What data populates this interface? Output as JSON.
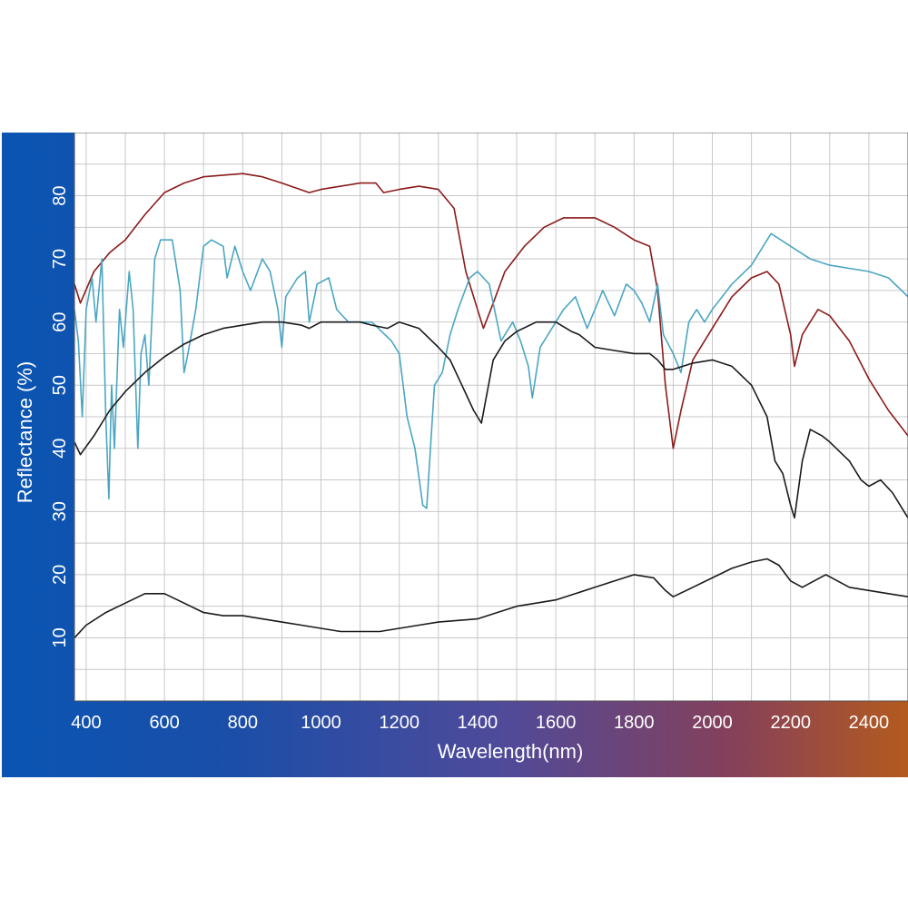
{
  "chart_data": {
    "type": "line",
    "title": "",
    "xlabel": "Wavelength(nm)",
    "ylabel": "Reflectance (%)",
    "xlim": [
      370,
      2500
    ],
    "ylim": [
      0,
      90
    ],
    "x_ticks": [
      400,
      600,
      800,
      1000,
      1200,
      1400,
      1600,
      1800,
      2000,
      2200,
      2400
    ],
    "y_ticks": [
      10,
      20,
      30,
      40,
      50,
      60,
      70,
      80
    ],
    "grid": true,
    "legend": "none",
    "colors": {
      "background_left": "#0a55b3",
      "background_right": "#b45a1e",
      "plot_area": "#ffffff",
      "grid": "#c8c8c8"
    },
    "series": [
      {
        "color": "#8b1a1a",
        "points": [
          [
            370,
            66
          ],
          [
            385,
            63
          ],
          [
            420,
            68
          ],
          [
            460,
            71
          ],
          [
            500,
            73
          ],
          [
            550,
            77
          ],
          [
            600,
            80.5
          ],
          [
            650,
            82
          ],
          [
            700,
            83
          ],
          [
            800,
            83.5
          ],
          [
            850,
            83
          ],
          [
            900,
            82
          ],
          [
            970,
            80.5
          ],
          [
            1000,
            81
          ],
          [
            1050,
            81.5
          ],
          [
            1100,
            82
          ],
          [
            1140,
            82
          ],
          [
            1160,
            80.5
          ],
          [
            1200,
            81
          ],
          [
            1250,
            81.5
          ],
          [
            1300,
            81
          ],
          [
            1340,
            78
          ],
          [
            1370,
            68
          ],
          [
            1400,
            62
          ],
          [
            1415,
            59
          ],
          [
            1440,
            63
          ],
          [
            1470,
            68
          ],
          [
            1520,
            72
          ],
          [
            1570,
            75
          ],
          [
            1620,
            76.5
          ],
          [
            1700,
            76.5
          ],
          [
            1750,
            75
          ],
          [
            1800,
            73
          ],
          [
            1840,
            72
          ],
          [
            1860,
            65
          ],
          [
            1880,
            50
          ],
          [
            1900,
            40
          ],
          [
            1920,
            46
          ],
          [
            1950,
            54
          ],
          [
            2000,
            59
          ],
          [
            2050,
            64
          ],
          [
            2100,
            67
          ],
          [
            2140,
            68
          ],
          [
            2170,
            66
          ],
          [
            2200,
            58
          ],
          [
            2210,
            53
          ],
          [
            2230,
            58
          ],
          [
            2270,
            62
          ],
          [
            2300,
            61
          ],
          [
            2350,
            57
          ],
          [
            2400,
            51
          ],
          [
            2450,
            46
          ],
          [
            2500,
            42
          ]
        ]
      },
      {
        "color": "#4aa6c2",
        "points": [
          [
            370,
            62
          ],
          [
            380,
            57
          ],
          [
            390,
            45
          ],
          [
            400,
            62
          ],
          [
            415,
            67
          ],
          [
            425,
            60
          ],
          [
            440,
            70
          ],
          [
            450,
            45
          ],
          [
            458,
            32
          ],
          [
            465,
            50
          ],
          [
            472,
            40
          ],
          [
            485,
            62
          ],
          [
            495,
            56
          ],
          [
            510,
            68
          ],
          [
            520,
            62
          ],
          [
            532,
            40
          ],
          [
            540,
            55
          ],
          [
            550,
            58
          ],
          [
            560,
            50
          ],
          [
            575,
            70
          ],
          [
            590,
            73
          ],
          [
            620,
            73
          ],
          [
            640,
            65
          ],
          [
            650,
            52
          ],
          [
            660,
            55
          ],
          [
            680,
            62
          ],
          [
            700,
            72
          ],
          [
            720,
            73
          ],
          [
            750,
            72
          ],
          [
            760,
            67
          ],
          [
            780,
            72
          ],
          [
            800,
            68
          ],
          [
            820,
            65
          ],
          [
            850,
            70
          ],
          [
            870,
            68
          ],
          [
            890,
            62
          ],
          [
            900,
            56
          ],
          [
            910,
            64
          ],
          [
            940,
            67
          ],
          [
            960,
            68
          ],
          [
            970,
            60
          ],
          [
            990,
            66
          ],
          [
            1020,
            67
          ],
          [
            1040,
            62
          ],
          [
            1070,
            60
          ],
          [
            1100,
            60
          ],
          [
            1130,
            60
          ],
          [
            1180,
            57
          ],
          [
            1200,
            55
          ],
          [
            1220,
            45
          ],
          [
            1240,
            40
          ],
          [
            1260,
            31
          ],
          [
            1270,
            30.5
          ],
          [
            1290,
            50
          ],
          [
            1310,
            52
          ],
          [
            1330,
            58
          ],
          [
            1350,
            62
          ],
          [
            1380,
            67
          ],
          [
            1400,
            68
          ],
          [
            1430,
            66
          ],
          [
            1460,
            57
          ],
          [
            1490,
            60
          ],
          [
            1510,
            57
          ],
          [
            1530,
            53
          ],
          [
            1540,
            48
          ],
          [
            1560,
            56
          ],
          [
            1600,
            60
          ],
          [
            1620,
            62
          ],
          [
            1650,
            64
          ],
          [
            1680,
            59
          ],
          [
            1700,
            62
          ],
          [
            1720,
            65
          ],
          [
            1750,
            61
          ],
          [
            1780,
            66
          ],
          [
            1800,
            65
          ],
          [
            1820,
            63
          ],
          [
            1840,
            60
          ],
          [
            1860,
            66
          ],
          [
            1875,
            58
          ],
          [
            1900,
            55
          ],
          [
            1920,
            52
          ],
          [
            1940,
            60
          ],
          [
            1960,
            62
          ],
          [
            1980,
            60
          ],
          [
            2000,
            62
          ],
          [
            2050,
            66
          ],
          [
            2100,
            69
          ],
          [
            2130,
            72
          ],
          [
            2150,
            74
          ],
          [
            2200,
            72
          ],
          [
            2250,
            70
          ],
          [
            2300,
            69
          ],
          [
            2400,
            68
          ],
          [
            2450,
            67
          ],
          [
            2500,
            64
          ]
        ]
      },
      {
        "color": "#1a1a1a",
        "points": [
          [
            370,
            41
          ],
          [
            385,
            39
          ],
          [
            420,
            42
          ],
          [
            460,
            46
          ],
          [
            500,
            49
          ],
          [
            550,
            52
          ],
          [
            600,
            54.5
          ],
          [
            650,
            56.5
          ],
          [
            700,
            58
          ],
          [
            750,
            59
          ],
          [
            800,
            59.5
          ],
          [
            850,
            60
          ],
          [
            900,
            60
          ],
          [
            950,
            59.5
          ],
          [
            970,
            59
          ],
          [
            1000,
            60
          ],
          [
            1050,
            60
          ],
          [
            1100,
            60
          ],
          [
            1130,
            59.5
          ],
          [
            1170,
            59
          ],
          [
            1200,
            60
          ],
          [
            1250,
            59
          ],
          [
            1300,
            56
          ],
          [
            1330,
            54
          ],
          [
            1360,
            50
          ],
          [
            1390,
            46
          ],
          [
            1410,
            44
          ],
          [
            1440,
            54
          ],
          [
            1470,
            57
          ],
          [
            1500,
            58.5
          ],
          [
            1550,
            60
          ],
          [
            1600,
            60
          ],
          [
            1640,
            58.5
          ],
          [
            1660,
            58
          ],
          [
            1700,
            56
          ],
          [
            1750,
            55.5
          ],
          [
            1800,
            55
          ],
          [
            1840,
            55
          ],
          [
            1860,
            54
          ],
          [
            1880,
            52.5
          ],
          [
            1900,
            52.5
          ],
          [
            1950,
            53.5
          ],
          [
            2000,
            54
          ],
          [
            2050,
            53
          ],
          [
            2100,
            50
          ],
          [
            2140,
            45
          ],
          [
            2160,
            38
          ],
          [
            2180,
            36
          ],
          [
            2200,
            31
          ],
          [
            2210,
            29
          ],
          [
            2230,
            38
          ],
          [
            2250,
            43
          ],
          [
            2280,
            42
          ],
          [
            2300,
            41
          ],
          [
            2350,
            38
          ],
          [
            2380,
            35
          ],
          [
            2400,
            34
          ],
          [
            2430,
            35
          ],
          [
            2460,
            33
          ],
          [
            2480,
            31
          ],
          [
            2500,
            29
          ]
        ]
      },
      {
        "color": "#1a1a1a",
        "points": [
          [
            370,
            10
          ],
          [
            400,
            12
          ],
          [
            450,
            14
          ],
          [
            500,
            15.5
          ],
          [
            550,
            17
          ],
          [
            600,
            17
          ],
          [
            650,
            15.5
          ],
          [
            700,
            14
          ],
          [
            750,
            13.5
          ],
          [
            800,
            13.5
          ],
          [
            850,
            13
          ],
          [
            900,
            12.5
          ],
          [
            950,
            12
          ],
          [
            1000,
            11.5
          ],
          [
            1050,
            11
          ],
          [
            1100,
            11
          ],
          [
            1150,
            11
          ],
          [
            1200,
            11.5
          ],
          [
            1250,
            12
          ],
          [
            1300,
            12.5
          ],
          [
            1400,
            13
          ],
          [
            1450,
            14
          ],
          [
            1500,
            15
          ],
          [
            1550,
            15.5
          ],
          [
            1600,
            16
          ],
          [
            1650,
            17
          ],
          [
            1700,
            18
          ],
          [
            1750,
            19
          ],
          [
            1800,
            20
          ],
          [
            1850,
            19.5
          ],
          [
            1880,
            17.5
          ],
          [
            1900,
            16.5
          ],
          [
            1950,
            18
          ],
          [
            2000,
            19.5
          ],
          [
            2050,
            21
          ],
          [
            2100,
            22
          ],
          [
            2140,
            22.5
          ],
          [
            2170,
            21.5
          ],
          [
            2200,
            19
          ],
          [
            2230,
            18
          ],
          [
            2260,
            19
          ],
          [
            2290,
            20
          ],
          [
            2320,
            19
          ],
          [
            2350,
            18
          ],
          [
            2400,
            17.5
          ],
          [
            2450,
            17
          ],
          [
            2500,
            16.5
          ]
        ]
      }
    ]
  }
}
